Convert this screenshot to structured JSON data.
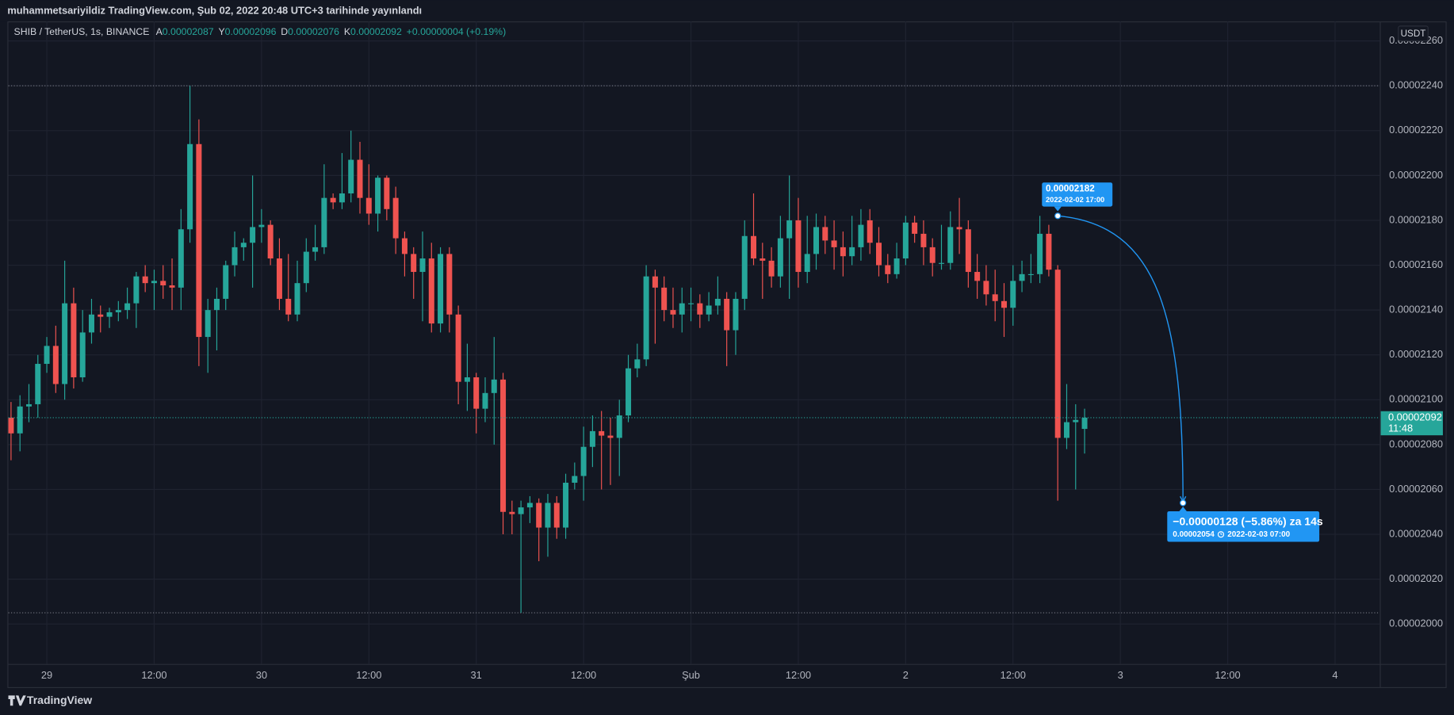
{
  "caption": "muhammetsariyildiz TradingView.com, Şub 02, 2022 20:48 UTC+3 tarihinde yayınlandı",
  "footer": "TradingView",
  "chart_data": {
    "type": "candlestick",
    "symbol": "SHIB / TetherUS, 1s, BINANCE",
    "ohlc_legend": [
      {
        "key": "A",
        "value": "0.00002087"
      },
      {
        "key": "Y",
        "value": "0.00002096"
      },
      {
        "key": "D",
        "value": "0.00002076"
      },
      {
        "key": "K",
        "value": "0.00002092"
      }
    ],
    "change": "+0.00000004 (+0.19%)",
    "currency": "USDT",
    "last_price_label": "0.00002092",
    "countdown": "11:48",
    "up_color": "#26a69a",
    "down_color": "#ef5350",
    "grid": true,
    "x": [
      -4,
      -3,
      -2,
      -1,
      0,
      1,
      2,
      3,
      4,
      5,
      6,
      7,
      8,
      9,
      10,
      11,
      12,
      13,
      14,
      15,
      16,
      17,
      18,
      19,
      20,
      21,
      22,
      23,
      24,
      25,
      26,
      27,
      28,
      29,
      30,
      31,
      32,
      33,
      34,
      35,
      36,
      37,
      38,
      39,
      40,
      41,
      42,
      43,
      44,
      45,
      46,
      47,
      48,
      49,
      50,
      51,
      52,
      53,
      54,
      55,
      56,
      57,
      58,
      59,
      60,
      61,
      62,
      63,
      64,
      65,
      66,
      67,
      68,
      69,
      70,
      71,
      72,
      73,
      74,
      75,
      76,
      77,
      78,
      79,
      80,
      81,
      82,
      83,
      84,
      85,
      86,
      87,
      88,
      89,
      90,
      91,
      92,
      93,
      94,
      95,
      96,
      97,
      98,
      99,
      100,
      101,
      102,
      103,
      104,
      105,
      106,
      107,
      108,
      109,
      110,
      111,
      112,
      113,
      114,
      115,
      116
    ],
    "open": [
      2.092e-05,
      2.085e-05,
      2.097e-05,
      2.098e-05,
      2.116e-05,
      2.124e-05,
      2.107e-05,
      2.143e-05,
      2.11e-05,
      2.13e-05,
      2.138e-05,
      2.137e-05,
      2.139e-05,
      2.14e-05,
      2.143e-05,
      2.155e-05,
      2.152e-05,
      2.153e-05,
      2.151e-05,
      2.15e-05,
      2.176e-05,
      2.214e-05,
      2.128e-05,
      2.14e-05,
      2.145e-05,
      2.16e-05,
      2.168e-05,
      2.17e-05,
      2.177e-05,
      2.178e-05,
      2.163e-05,
      2.145e-05,
      2.138e-05,
      2.152e-05,
      2.166e-05,
      2.168e-05,
      2.19e-05,
      2.188e-05,
      2.192e-05,
      2.207e-05,
      2.19e-05,
      2.183e-05,
      2.199e-05,
      2.19e-05,
      2.172e-05,
      2.165e-05,
      2.157e-05,
      2.163e-05,
      2.134e-05,
      2.165e-05,
      2.138e-05,
      2.108e-05,
      2.11e-05,
      2.096e-05,
      2.103e-05,
      2.109e-05,
      2.05e-05,
      2.049e-05,
      2.052e-05,
      2.054e-05,
      2.043e-05,
      2.054e-05,
      2.043e-05,
      2.063e-05,
      2.066e-05,
      2.079e-05,
      2.086e-05,
      2.084e-05,
      2.083e-05,
      2.093e-05,
      2.114e-05,
      2.118e-05,
      2.155e-05,
      2.15e-05,
      2.14e-05,
      2.138e-05,
      2.143e-05,
      2.143e-05,
      2.138e-05,
      2.142e-05,
      2.145e-05,
      2.131e-05,
      2.145e-05,
      2.173e-05,
      2.163e-05,
      2.162e-05,
      2.155e-05,
      2.172e-05,
      2.18e-05,
      2.157e-05,
      2.165e-05,
      2.177e-05,
      2.171e-05,
      2.168e-05,
      2.164e-05,
      2.168e-05,
      2.18e-05,
      2.17e-05,
      2.16e-05,
      2.156e-05,
      2.163e-05,
      2.179e-05,
      2.174e-05,
      2.168e-05,
      2.161e-05,
      2.161e-05,
      2.177e-05,
      2.176e-05,
      2.157e-05,
      2.153e-05,
      2.147e-05,
      2.144e-05,
      2.141e-05,
      2.153e-05,
      2.156e-05,
      2.156e-05,
      2.174e-05,
      2.158e-05,
      2.083e-05,
      2.09e-05,
      2.087e-05
    ],
    "high": [
      2.099e-05,
      2.102e-05,
      2.107e-05,
      2.12e-05,
      2.128e-05,
      2.133e-05,
      2.162e-05,
      2.15e-05,
      2.14e-05,
      2.145e-05,
      2.142e-05,
      2.141e-05,
      2.144e-05,
      2.15e-05,
      2.157e-05,
      2.16e-05,
      2.158e-05,
      2.16e-05,
      2.163e-05,
      2.185e-05,
      2.24e-05,
      2.225e-05,
      2.145e-05,
      2.15e-05,
      2.162e-05,
      2.175e-05,
      2.172e-05,
      2.2e-05,
      2.185e-05,
      2.18e-05,
      2.172e-05,
      2.165e-05,
      2.162e-05,
      2.172e-05,
      2.178e-05,
      2.205e-05,
      2.192e-05,
      2.21e-05,
      2.22e-05,
      2.215e-05,
      2.205e-05,
      2.2e-05,
      2.2e-05,
      2.195e-05,
      2.175e-05,
      2.168e-05,
      2.175e-05,
      2.17e-05,
      2.168e-05,
      2.168e-05,
      2.142e-05,
      2.125e-05,
      2.112e-05,
      2.11e-05,
      2.128e-05,
      2.112e-05,
      2.055e-05,
      2.055e-05,
      2.057e-05,
      2.056e-05,
      2.058e-05,
      2.057e-05,
      2.067e-05,
      2.072e-05,
      2.088e-05,
      2.093e-05,
      2.095e-05,
      2.092e-05,
      2.1e-05,
      2.12e-05,
      2.125e-05,
      2.16e-05,
      2.158e-05,
      2.155e-05,
      2.15e-05,
      2.15e-05,
      2.15e-05,
      2.147e-05,
      2.148e-05,
      2.155e-05,
      2.148e-05,
      2.148e-05,
      2.18e-05,
      2.192e-05,
      2.17e-05,
      2.168e-05,
      2.182e-05,
      2.2e-05,
      2.19e-05,
      2.182e-05,
      2.183e-05,
      2.182e-05,
      2.18e-05,
      2.175e-05,
      2.182e-05,
      2.185e-05,
      2.185e-05,
      2.177e-05,
      2.165e-05,
      2.17e-05,
      2.182e-05,
      2.182e-05,
      2.18e-05,
      2.172e-05,
      2.178e-05,
      2.184e-05,
      2.19e-05,
      2.18e-05,
      2.165e-05,
      2.16e-05,
      2.158e-05,
      2.152e-05,
      2.16e-05,
      2.162e-05,
      2.165e-05,
      2.182e-05,
      2.178e-05,
      2.16e-05,
      2.107e-05,
      2.098e-05,
      2.096e-05
    ],
    "low": [
      2.073e-05,
      2.077e-05,
      2.09e-05,
      2.092e-05,
      2.112e-05,
      2.103e-05,
      2.1e-05,
      2.105e-05,
      2.108e-05,
      2.125e-05,
      2.13e-05,
      2.132e-05,
      2.135e-05,
      2.136e-05,
      2.132e-05,
      2.148e-05,
      2.14e-05,
      2.145e-05,
      2.14e-05,
      2.14e-05,
      2.17e-05,
      2.115e-05,
      2.112e-05,
      2.122e-05,
      2.14e-05,
      2.155e-05,
      2.162e-05,
      2.15e-05,
      2.17e-05,
      2.16e-05,
      2.14e-05,
      2.135e-05,
      2.135e-05,
      2.148e-05,
      2.162e-05,
      2.165e-05,
      2.185e-05,
      2.185e-05,
      2.188e-05,
      2.183e-05,
      2.178e-05,
      2.175e-05,
      2.18e-05,
      2.165e-05,
      2.155e-05,
      2.145e-05,
      2.135e-05,
      2.13e-05,
      2.13e-05,
      2.13e-05,
      2.098e-05,
      2.095e-05,
      2.085e-05,
      2.09e-05,
      2.08e-05,
      2.04e-05,
      2.04e-05,
      2.005e-05,
      2.045e-05,
      2.028e-05,
      2.03e-05,
      2.038e-05,
      2.038e-05,
      2.06e-05,
      2.055e-05,
      2.07e-05,
      2.06e-05,
      2.062e-05,
      2.066e-05,
      2.09e-05,
      2.11e-05,
      2.115e-05,
      2.125e-05,
      2.135e-05,
      2.132e-05,
      2.13e-05,
      2.135e-05,
      2.132e-05,
      2.135e-05,
      2.138e-05,
      2.115e-05,
      2.12e-05,
      2.14e-05,
      2.16e-05,
      2.145e-05,
      2.15e-05,
      2.15e-05,
      2.145e-05,
      2.15e-05,
      2.152e-05,
      2.158e-05,
      2.165e-05,
      2.158e-05,
      2.155e-05,
      2.16e-05,
      2.162e-05,
      2.165e-05,
      2.155e-05,
      2.152e-05,
      2.154e-05,
      2.16e-05,
      2.17e-05,
      2.16e-05,
      2.155e-05,
      2.158e-05,
      2.158e-05,
      2.165e-05,
      2.15e-05,
      2.145e-05,
      2.142e-05,
      2.135e-05,
      2.128e-05,
      2.133e-05,
      2.148e-05,
      2.152e-05,
      2.152e-05,
      2.155e-05,
      2.055e-05,
      2.078e-05,
      2.06e-05,
      2.076e-05
    ],
    "close": [
      2.085e-05,
      2.097e-05,
      2.098e-05,
      2.116e-05,
      2.124e-05,
      2.107e-05,
      2.143e-05,
      2.11e-05,
      2.13e-05,
      2.138e-05,
      2.137e-05,
      2.139e-05,
      2.14e-05,
      2.143e-05,
      2.155e-05,
      2.152e-05,
      2.153e-05,
      2.151e-05,
      2.15e-05,
      2.176e-05,
      2.214e-05,
      2.128e-05,
      2.14e-05,
      2.145e-05,
      2.16e-05,
      2.168e-05,
      2.17e-05,
      2.177e-05,
      2.178e-05,
      2.163e-05,
      2.145e-05,
      2.138e-05,
      2.152e-05,
      2.166e-05,
      2.168e-05,
      2.19e-05,
      2.188e-05,
      2.192e-05,
      2.207e-05,
      2.19e-05,
      2.183e-05,
      2.199e-05,
      2.185e-05,
      2.172e-05,
      2.165e-05,
      2.157e-05,
      2.163e-05,
      2.134e-05,
      2.165e-05,
      2.138e-05,
      2.108e-05,
      2.11e-05,
      2.096e-05,
      2.103e-05,
      2.109e-05,
      2.05e-05,
      2.049e-05,
      2.052e-05,
      2.054e-05,
      2.043e-05,
      2.054e-05,
      2.043e-05,
      2.063e-05,
      2.066e-05,
      2.079e-05,
      2.086e-05,
      2.084e-05,
      2.083e-05,
      2.093e-05,
      2.114e-05,
      2.118e-05,
      2.155e-05,
      2.15e-05,
      2.14e-05,
      2.138e-05,
      2.143e-05,
      2.143e-05,
      2.138e-05,
      2.142e-05,
      2.145e-05,
      2.131e-05,
      2.145e-05,
      2.173e-05,
      2.163e-05,
      2.162e-05,
      2.155e-05,
      2.172e-05,
      2.18e-05,
      2.157e-05,
      2.165e-05,
      2.177e-05,
      2.171e-05,
      2.168e-05,
      2.164e-05,
      2.168e-05,
      2.178e-05,
      2.17e-05,
      2.16e-05,
      2.156e-05,
      2.163e-05,
      2.179e-05,
      2.174e-05,
      2.168e-05,
      2.161e-05,
      2.161e-05,
      2.177e-05,
      2.176e-05,
      2.157e-05,
      2.153e-05,
      2.147e-05,
      2.144e-05,
      2.141e-05,
      2.153e-05,
      2.156e-05,
      2.156e-05,
      2.174e-05,
      2.158e-05,
      2.083e-05,
      2.09e-05,
      2.091e-05,
      2.092e-05
    ],
    "xlim": [
      -4.3,
      149
    ],
    "xticks": [
      {
        "value": 0,
        "label": "29"
      },
      {
        "value": 12,
        "label": "12:00"
      },
      {
        "value": 24,
        "label": "30"
      },
      {
        "value": 36,
        "label": "12:00"
      },
      {
        "value": 48,
        "label": "31"
      },
      {
        "value": 60,
        "label": "12:00"
      },
      {
        "value": 72,
        "label": "Şub"
      },
      {
        "value": 84,
        "label": "12:00"
      },
      {
        "value": 96,
        "label": "2"
      },
      {
        "value": 108,
        "label": "12:00"
      },
      {
        "value": 120,
        "label": "3"
      },
      {
        "value": 132,
        "label": "12:00"
      },
      {
        "value": 144,
        "label": "4"
      }
    ],
    "ylim": [
      1.9822e-05,
      2.2687e-05
    ],
    "yticks": [
      {
        "value": 2e-05,
        "label": "0.00002000"
      },
      {
        "value": 2.02e-05,
        "label": "0.00002020"
      },
      {
        "value": 2.04e-05,
        "label": "0.00002040"
      },
      {
        "value": 2.06e-05,
        "label": "0.00002060"
      },
      {
        "value": 2.08e-05,
        "label": "0.00002080"
      },
      {
        "value": 2.1e-05,
        "label": "0.00002100"
      },
      {
        "value": 2.12e-05,
        "label": "0.00002120"
      },
      {
        "value": 2.14e-05,
        "label": "0.00002140"
      },
      {
        "value": 2.16e-05,
        "label": "0.00002160"
      },
      {
        "value": 2.18e-05,
        "label": "0.00002180"
      },
      {
        "value": 2.2e-05,
        "label": "0.00002200"
      },
      {
        "value": 2.22e-05,
        "label": "0.00002220"
      },
      {
        "value": 2.24e-05,
        "label": "0.00002240"
      },
      {
        "value": 2.26e-05,
        "label": "0.00002260"
      }
    ],
    "hlines": [
      2.24e-05,
      2.005e-05
    ],
    "measure": {
      "from": {
        "x": 113,
        "y": 2.182e-05,
        "label": "0.00002182",
        "time": "2022-02-02 17:00"
      },
      "to": {
        "x": 127,
        "y": 2.054e-05,
        "label": "0.00002054",
        "time": "2022-02-03  07:00"
      },
      "text": "−0.00000128 (−5.86%) za 14s"
    }
  }
}
